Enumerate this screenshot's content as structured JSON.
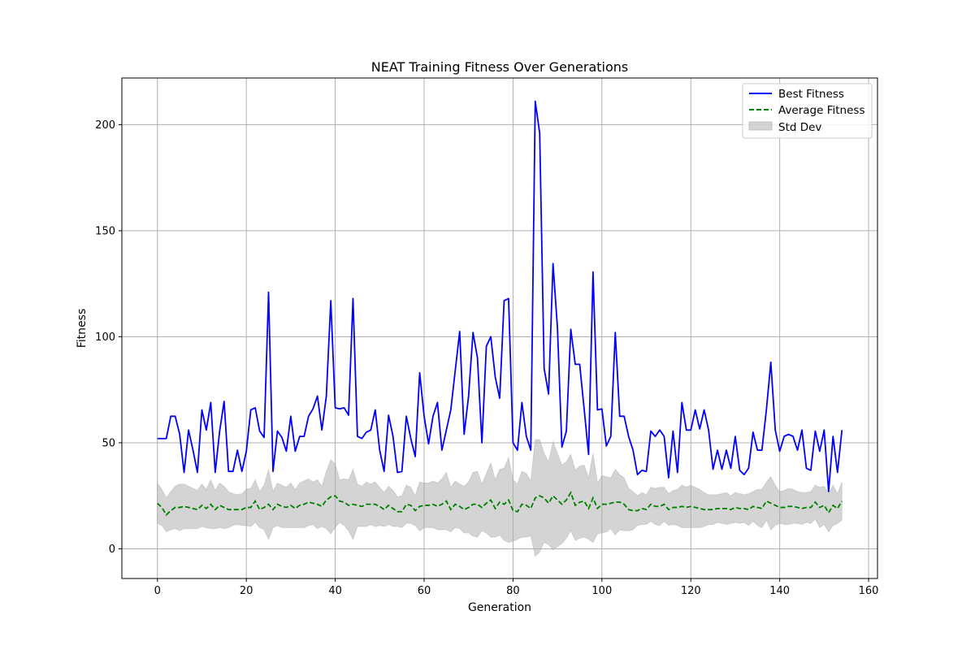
{
  "chart_data": {
    "type": "line",
    "title": "NEAT Training Fitness Over Generations",
    "xlabel": "Generation",
    "ylabel": "Fitness",
    "xlim": [
      -8,
      162
    ],
    "ylim": [
      -14,
      222
    ],
    "xticks": [
      0,
      20,
      40,
      60,
      80,
      100,
      120,
      140,
      160
    ],
    "yticks": [
      0,
      50,
      100,
      150,
      200
    ],
    "grid": true,
    "legend_position": "top-right",
    "colors": {
      "best": "#0000ff",
      "average": "#008000",
      "std": "#a9a9a9"
    },
    "series": [
      {
        "name": "Best Fitness",
        "style": "solid",
        "values": [
          52,
          52,
          52,
          62.5,
          62.5,
          54,
          36,
          56,
          46.5,
          36,
          65.5,
          56,
          69,
          36,
          55.5,
          69.5,
          36.5,
          36.5,
          46.5,
          36.5,
          46,
          65.5,
          66.5,
          55.5,
          52.5,
          121,
          36.5,
          55.5,
          52.5,
          46,
          62.5,
          46,
          53,
          53,
          62.5,
          66,
          72,
          56,
          72,
          117,
          66.5,
          66,
          66.5,
          63,
          118,
          53,
          52,
          55,
          56,
          65.5,
          46.5,
          36.5,
          63,
          53,
          36,
          36.5,
          62.5,
          52,
          43.5,
          83,
          62.5,
          49.5,
          62.5,
          69,
          46.5,
          56,
          65.5,
          84,
          102.5,
          54,
          72,
          102,
          90,
          50,
          95.5,
          100,
          81,
          71,
          117,
          118,
          50,
          46.5,
          69,
          53,
          46.5,
          211,
          196,
          85,
          73,
          134.5,
          104,
          48,
          55.5,
          103.5,
          87,
          87,
          66,
          44.5,
          130.5,
          65.5,
          66,
          48.5,
          53,
          102,
          62.5,
          62.5,
          53,
          46.5,
          35,
          37,
          36.5,
          55.5,
          53,
          56,
          53,
          33.5,
          55.5,
          36,
          69,
          56,
          56,
          65.5,
          56.5,
          65.5,
          56,
          37.5,
          46.5,
          37.5,
          46.5,
          38,
          53,
          37,
          35,
          38,
          55,
          46.5,
          46.5,
          65.5,
          88,
          56,
          46,
          53,
          54,
          53,
          46.5,
          56,
          38,
          37,
          55.5,
          46,
          56,
          27,
          53,
          36,
          56
        ]
      },
      {
        "name": "Average Fitness",
        "style": "dashed",
        "values": [
          21.5,
          19.5,
          16,
          18,
          19.5,
          19.5,
          20,
          19.5,
          19,
          18.5,
          20.5,
          19,
          21,
          18.5,
          20.5,
          19.5,
          18.5,
          18.5,
          18.5,
          18.5,
          19.5,
          19.5,
          22.5,
          18.5,
          19.5,
          21,
          18.5,
          21,
          20,
          19.5,
          20.5,
          19,
          20.5,
          21,
          22,
          21.5,
          21,
          20,
          23,
          24.5,
          25,
          22.5,
          22,
          20.5,
          21,
          20.5,
          20,
          21,
          21,
          21,
          20,
          18.5,
          20.5,
          19,
          17.5,
          17.5,
          21,
          20.5,
          18,
          20,
          20.5,
          20.5,
          21,
          20,
          21,
          22.5,
          18.5,
          21,
          20,
          18.5,
          19.5,
          21,
          21,
          19.5,
          21.5,
          23,
          19,
          22,
          21,
          23,
          18,
          17.5,
          21,
          20.5,
          19,
          24,
          25,
          24,
          21.5,
          25,
          23,
          21,
          23,
          26.5,
          20.5,
          22,
          22.5,
          19,
          24,
          19,
          21,
          21,
          21.5,
          22,
          22,
          21,
          18.5,
          18,
          18,
          19,
          18.5,
          21,
          20,
          20,
          21,
          18.5,
          19.5,
          19.5,
          20,
          19.5,
          20,
          19.5,
          19,
          18.5,
          18.5,
          18.5,
          19,
          19,
          19,
          18.5,
          19.5,
          19,
          19,
          18.5,
          20,
          19.5,
          19,
          22.5,
          21.5,
          20.5,
          19.5,
          19.5,
          20,
          20,
          19.5,
          19,
          19.5,
          19.5,
          22,
          19.5,
          20.5,
          17,
          20.5,
          19,
          22.5
        ]
      },
      {
        "name": "Std Dev",
        "style": "band",
        "values": [
          9.5,
          8.5,
          8,
          9,
          10,
          11,
          10.5,
          10,
          9.5,
          9,
          10,
          9,
          11.5,
          9,
          10.5,
          10,
          8.5,
          7.5,
          7,
          7.5,
          8.5,
          9,
          10,
          8.5,
          10.5,
          16.5,
          8.5,
          10,
          10,
          9.5,
          10.5,
          9,
          10.5,
          11,
          11,
          10,
          11.5,
          9.5,
          13.5,
          17.5,
          15,
          10,
          11,
          12,
          16.5,
          10,
          9.5,
          10.5,
          9.5,
          10.5,
          9,
          8,
          9,
          8.5,
          7,
          7.5,
          9,
          8.5,
          7,
          11.5,
          10.5,
          10.5,
          11,
          11,
          12,
          13.5,
          10.5,
          11,
          10.5,
          11,
          12,
          15,
          15.5,
          11,
          14,
          17.5,
          13.5,
          15.5,
          17,
          20,
          14.5,
          13,
          15.5,
          15,
          13,
          27.5,
          26.5,
          21,
          19.5,
          25.5,
          22,
          18.5,
          18,
          18,
          16.5,
          17,
          17,
          14.5,
          21,
          12,
          13.5,
          13,
          12,
          15.5,
          13,
          12.5,
          10,
          9,
          7,
          7.5,
          7,
          8,
          8.5,
          9,
          8,
          7.5,
          8,
          8.5,
          10,
          9.5,
          10,
          9.5,
          9,
          8,
          7,
          7,
          6.5,
          7,
          7.5,
          6.5,
          7,
          7,
          6.5,
          7.5,
          7,
          8.5,
          9,
          9,
          12.5,
          9.5,
          7.5,
          8,
          8.5,
          8,
          7.5,
          7.5,
          7,
          7.5,
          8,
          9.5,
          9,
          9,
          9.5,
          7,
          9,
          8,
          11
        ]
      }
    ]
  }
}
